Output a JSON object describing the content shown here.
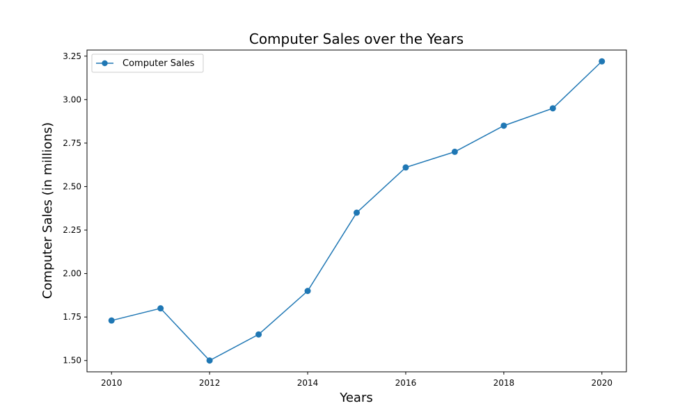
{
  "chart_data": {
    "type": "line",
    "title": "Computer Sales over the Years",
    "xlabel": "Years",
    "ylabel": "Computer Sales (in millions)",
    "x": [
      2010,
      2011,
      2012,
      2013,
      2014,
      2015,
      2016,
      2017,
      2018,
      2019,
      2020
    ],
    "series": [
      {
        "name": "Computer Sales",
        "values": [
          1.73,
          1.8,
          1.5,
          1.65,
          1.9,
          2.35,
          2.61,
          2.7,
          2.85,
          2.95,
          3.22
        ],
        "color": "#1f77b4",
        "marker": "circle"
      }
    ],
    "xlim": [
      2009.5,
      2020.5
    ],
    "ylim": [
      1.435,
      3.285
    ],
    "xticks": [
      2010,
      2012,
      2014,
      2016,
      2018,
      2020
    ],
    "xtick_labels": [
      "2010",
      "2012",
      "2014",
      "2016",
      "2018",
      "2020"
    ],
    "yticks": [
      1.5,
      1.75,
      2.0,
      2.25,
      2.5,
      2.75,
      3.0,
      3.25
    ],
    "ytick_labels": [
      "1.50",
      "1.75",
      "2.00",
      "2.25",
      "2.50",
      "2.75",
      "3.00",
      "3.25"
    ],
    "grid": false,
    "legend_position": "top-left"
  }
}
